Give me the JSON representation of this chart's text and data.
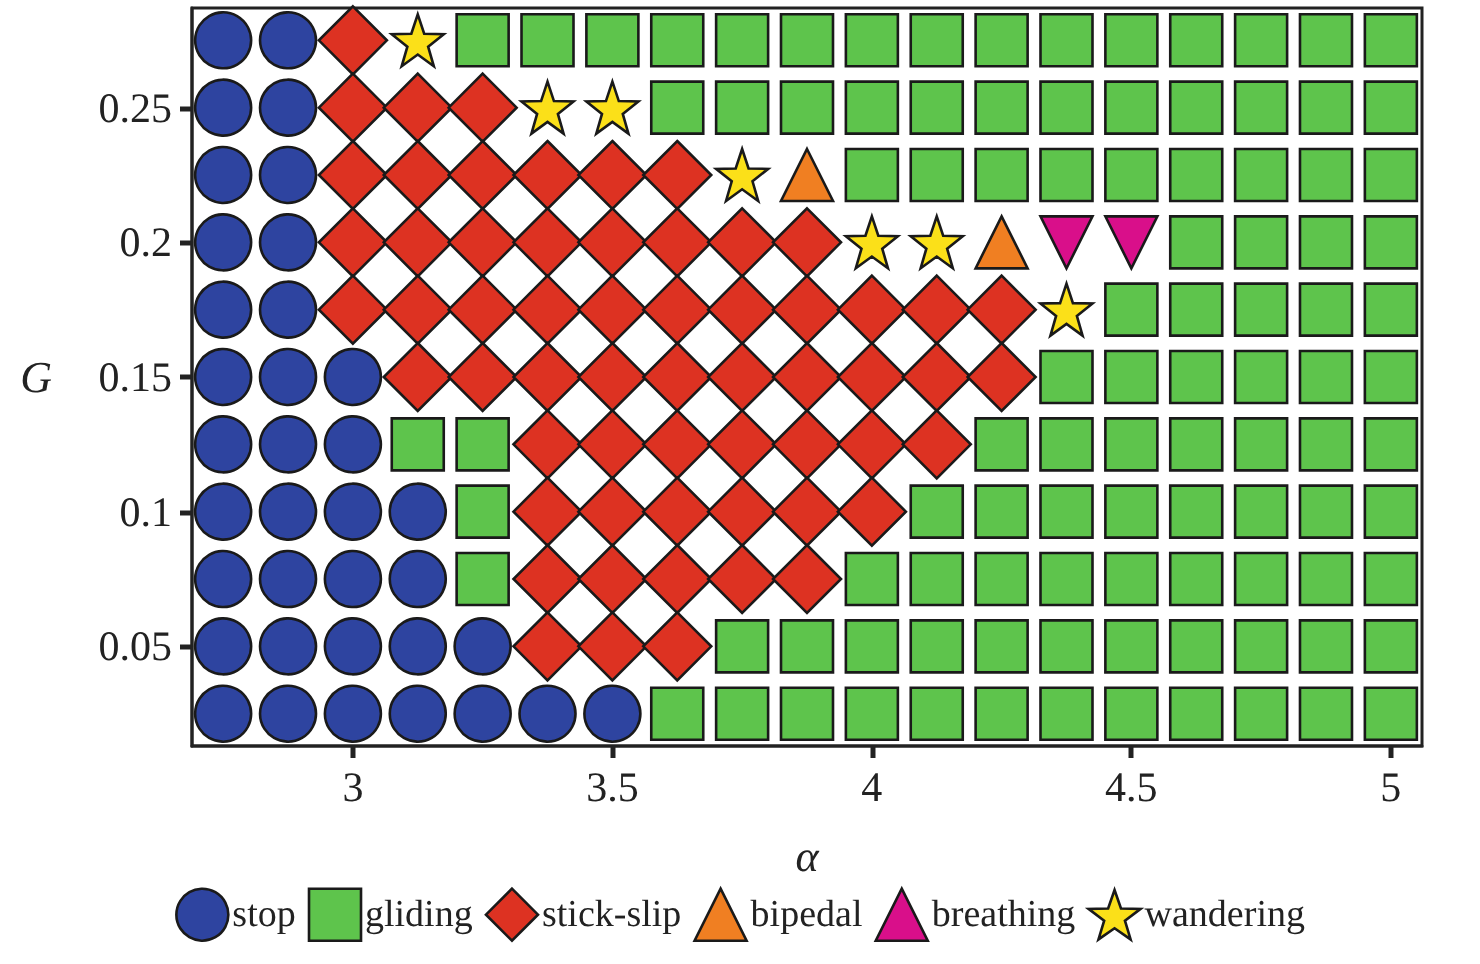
{
  "chart_data": {
    "type": "scatter",
    "xlabel": "α",
    "ylabel": "G",
    "xlim": [
      2.69,
      5.06
    ],
    "ylim": [
      0.013,
      0.287
    ],
    "xticks": [
      3,
      3.5,
      4,
      4.5,
      5
    ],
    "yticks": [
      0.05,
      0.1,
      0.15,
      0.2,
      0.25
    ],
    "grid": false,
    "legend": "bottom",
    "series": [
      {
        "name": "stop",
        "color": "#2e44a0",
        "marker": "circle",
        "x": [
          2.75,
          2.875,
          2.75,
          2.875,
          2.75,
          2.875,
          2.75,
          2.875,
          2.75,
          2.875,
          2.75,
          2.875,
          3,
          2.75,
          2.875,
          3,
          2.75,
          2.875,
          3,
          3.125,
          2.75,
          2.875,
          3,
          3.125,
          2.75,
          2.875,
          3,
          3.125,
          3.25,
          2.75,
          2.875,
          3,
          3.125,
          3.25,
          3.375,
          3.5
        ],
        "values": [
          0.275,
          0.275,
          0.25,
          0.25,
          0.225,
          0.225,
          0.2,
          0.2,
          0.175,
          0.175,
          0.15,
          0.15,
          0.15,
          0.125,
          0.125,
          0.125,
          0.1,
          0.1,
          0.1,
          0.1,
          0.075,
          0.075,
          0.075,
          0.075,
          0.05,
          0.05,
          0.05,
          0.05,
          0.05,
          0.025,
          0.025,
          0.025,
          0.025,
          0.025,
          0.025,
          0.025
        ]
      },
      {
        "name": "gliding",
        "color": "#5ec44c",
        "marker": "square",
        "x": [
          3.25,
          3.375,
          3.5,
          3.625,
          3.75,
          3.875,
          4,
          4.125,
          4.25,
          4.375,
          4.5,
          4.625,
          4.75,
          4.875,
          5,
          3.625,
          3.75,
          3.875,
          4,
          4.125,
          4.25,
          4.375,
          4.5,
          4.625,
          4.75,
          4.875,
          5,
          4,
          4.125,
          4.25,
          4.375,
          4.5,
          4.625,
          4.75,
          4.875,
          5,
          4.625,
          4.75,
          4.875,
          5,
          4.5,
          4.625,
          4.75,
          4.875,
          5,
          4.375,
          4.5,
          4.625,
          4.75,
          4.875,
          5,
          3.125,
          3.25,
          4.25,
          4.375,
          4.5,
          4.625,
          4.75,
          4.875,
          5,
          3.25,
          4.125,
          4.25,
          4.375,
          4.5,
          4.625,
          4.75,
          4.875,
          5,
          3.25,
          4,
          4.125,
          4.25,
          4.375,
          4.5,
          4.625,
          4.75,
          4.875,
          5,
          3.75,
          3.875,
          4,
          4.125,
          4.25,
          4.375,
          4.5,
          4.625,
          4.75,
          4.875,
          5,
          3.625,
          3.75,
          3.875,
          4,
          4.125,
          4.25,
          4.375,
          4.5,
          4.625,
          4.75,
          4.875,
          5
        ],
        "values": [
          0.275,
          0.275,
          0.275,
          0.275,
          0.275,
          0.275,
          0.275,
          0.275,
          0.275,
          0.275,
          0.275,
          0.275,
          0.275,
          0.275,
          0.275,
          0.25,
          0.25,
          0.25,
          0.25,
          0.25,
          0.25,
          0.25,
          0.25,
          0.25,
          0.25,
          0.25,
          0.25,
          0.225,
          0.225,
          0.225,
          0.225,
          0.225,
          0.225,
          0.225,
          0.225,
          0.225,
          0.2,
          0.2,
          0.2,
          0.2,
          0.175,
          0.175,
          0.175,
          0.175,
          0.175,
          0.15,
          0.15,
          0.15,
          0.15,
          0.15,
          0.15,
          0.125,
          0.125,
          0.125,
          0.125,
          0.125,
          0.125,
          0.125,
          0.125,
          0.125,
          0.1,
          0.1,
          0.1,
          0.1,
          0.1,
          0.1,
          0.1,
          0.1,
          0.1,
          0.075,
          0.075,
          0.075,
          0.075,
          0.075,
          0.075,
          0.075,
          0.075,
          0.075,
          0.075,
          0.05,
          0.05,
          0.05,
          0.05,
          0.05,
          0.05,
          0.05,
          0.05,
          0.05,
          0.05,
          0.05,
          0.025,
          0.025,
          0.025,
          0.025,
          0.025,
          0.025,
          0.025,
          0.025,
          0.025,
          0.025,
          0.025,
          0.025
        ]
      },
      {
        "name": "stick-slip",
        "color": "#dd3222",
        "marker": "diamond",
        "x": [
          3,
          3,
          3.125,
          3.25,
          3,
          3.125,
          3.25,
          3.375,
          3.5,
          3.625,
          3,
          3.125,
          3.25,
          3.375,
          3.5,
          3.625,
          3.75,
          3.875,
          3,
          3.125,
          3.25,
          3.375,
          3.5,
          3.625,
          3.75,
          3.875,
          4,
          4.125,
          4.25,
          3.125,
          3.25,
          3.375,
          3.5,
          3.625,
          3.75,
          3.875,
          4,
          4.125,
          4.25,
          3.375,
          3.5,
          3.625,
          3.75,
          3.875,
          4,
          4.125,
          3.375,
          3.5,
          3.625,
          3.75,
          3.875,
          4,
          3.375,
          3.5,
          3.625,
          3.75,
          3.875,
          3.375,
          3.5,
          3.625
        ],
        "values": [
          0.275,
          0.25,
          0.25,
          0.25,
          0.225,
          0.225,
          0.225,
          0.225,
          0.225,
          0.225,
          0.2,
          0.2,
          0.2,
          0.2,
          0.2,
          0.2,
          0.2,
          0.2,
          0.175,
          0.175,
          0.175,
          0.175,
          0.175,
          0.175,
          0.175,
          0.175,
          0.175,
          0.175,
          0.175,
          0.15,
          0.15,
          0.15,
          0.15,
          0.15,
          0.15,
          0.15,
          0.15,
          0.15,
          0.15,
          0.125,
          0.125,
          0.125,
          0.125,
          0.125,
          0.125,
          0.125,
          0.1,
          0.1,
          0.1,
          0.1,
          0.1,
          0.1,
          0.075,
          0.075,
          0.075,
          0.075,
          0.075,
          0.05,
          0.05,
          0.05
        ]
      },
      {
        "name": "bipedal",
        "color": "#f07f22",
        "marker": "triangle",
        "x": [
          3.875,
          4.25
        ],
        "values": [
          0.225,
          0.2
        ]
      },
      {
        "name": "breathing",
        "color": "#d90f8a",
        "marker": "triangle_down",
        "x": [
          4.375,
          4.5
        ],
        "values": [
          0.2,
          0.2
        ]
      },
      {
        "name": "wandering",
        "color": "#fbe019",
        "marker": "star",
        "x": [
          3.125,
          3.375,
          3.5,
          3.75,
          4,
          4.125,
          4.375
        ],
        "values": [
          0.275,
          0.25,
          0.25,
          0.225,
          0.2,
          0.2,
          0.175
        ]
      }
    ]
  }
}
